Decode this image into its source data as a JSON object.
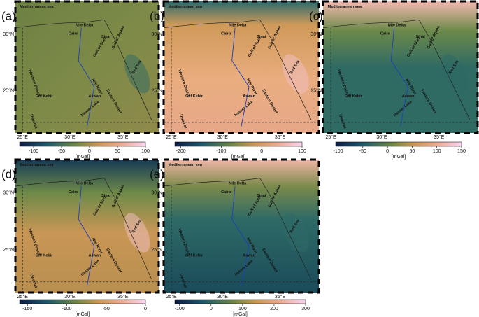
{
  "places": [
    "Mediterranean sea",
    "Nile Delta",
    "Cairo",
    "Sinai",
    "Gulf of Suez",
    "Gulf of Aqaba",
    "Red Sea",
    "Western Desert",
    "Nile River",
    "Eastern Desert",
    "Aswan",
    "Gilf Kebir",
    "Uweinat",
    "Nasser Lake"
  ],
  "lat_ticks": [
    "30°N",
    "25°N"
  ],
  "lon_ticks": [
    "25°E",
    "30°E",
    "35°E"
  ],
  "panels": [
    {
      "letter": "(a)",
      "unit": "[mGal]",
      "cbar_lim": [
        -125,
        100
      ],
      "cbar_ticks": [
        -100,
        -50,
        0,
        50,
        100
      ]
    },
    {
      "letter": "(b)",
      "unit": "[mGal]",
      "cbar_lim": [
        -215,
        100
      ],
      "cbar_ticks": [
        -200,
        -100,
        0,
        100
      ]
    },
    {
      "letter": "(c)",
      "unit": "[mGal]",
      "cbar_lim": [
        -105,
        150
      ],
      "cbar_ticks": [
        -100,
        -50,
        0,
        50,
        100,
        150
      ]
    },
    {
      "letter": "(d)",
      "unit": "[mGal]",
      "cbar_lim": [
        -160,
        0
      ],
      "cbar_ticks": [
        -150,
        -100,
        -50,
        0
      ]
    },
    {
      "letter": "(e)",
      "unit": "[mGal]",
      "cbar_lim": [
        -115,
        300
      ],
      "cbar_ticks": [
        -100,
        0,
        100,
        200,
        300
      ]
    }
  ]
}
